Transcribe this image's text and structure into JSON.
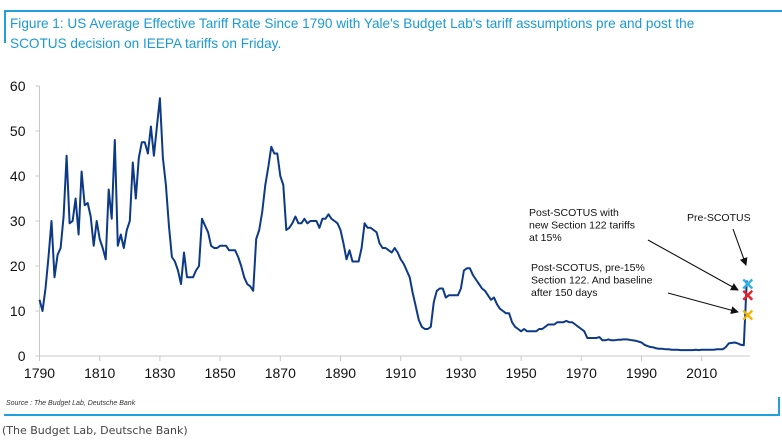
{
  "figure": {
    "title_line1": "Figure 1: US Average Effective Tariff Rate Since 1790 with Yale's Budget Lab's tariff assumptions pre and post the",
    "title_line2": "SCOTUS decision on IEEPA tariffs on Friday.",
    "source": "Source : The Budget Lab, Deutsche Bank",
    "caption": "(The Budget Lab, Deutsche Bank)"
  },
  "chart_data": {
    "type": "line",
    "title": "US Average Effective Tariff Rate Since 1790",
    "xlabel": "",
    "ylabel": "",
    "xlim": [
      1790,
      2026
    ],
    "ylim": [
      0,
      60
    ],
    "grid": false,
    "x_ticks": [
      "1790",
      "1810",
      "1830",
      "1850",
      "1870",
      "1890",
      "1910",
      "1930",
      "1950",
      "1970",
      "1990",
      "2010"
    ],
    "y_ticks": [
      "0",
      "10",
      "20",
      "30",
      "40",
      "50",
      "60"
    ],
    "series": [
      {
        "name": "US Average Effective Tariff Rate",
        "color": "#0d3a86",
        "points": [
          [
            1790,
            12.5
          ],
          [
            1791,
            10
          ],
          [
            1792,
            15
          ],
          [
            1793,
            22
          ],
          [
            1794,
            30
          ],
          [
            1795,
            17.5
          ],
          [
            1796,
            22.5
          ],
          [
            1797,
            24
          ],
          [
            1798,
            31
          ],
          [
            1799,
            44.5
          ],
          [
            1800,
            29.5
          ],
          [
            1801,
            30
          ],
          [
            1802,
            35
          ],
          [
            1803,
            27
          ],
          [
            1804,
            41
          ],
          [
            1805,
            33.5
          ],
          [
            1806,
            34
          ],
          [
            1807,
            31
          ],
          [
            1808,
            24.5
          ],
          [
            1809,
            30
          ],
          [
            1810,
            26
          ],
          [
            1811,
            24
          ],
          [
            1812,
            21.5
          ],
          [
            1813,
            37
          ],
          [
            1814,
            30.5
          ],
          [
            1815,
            48
          ],
          [
            1816,
            24.5
          ],
          [
            1817,
            27
          ],
          [
            1818,
            24
          ],
          [
            1819,
            28
          ],
          [
            1820,
            30
          ],
          [
            1821,
            43
          ],
          [
            1822,
            35
          ],
          [
            1823,
            44
          ],
          [
            1824,
            47.5
          ],
          [
            1825,
            47.5
          ],
          [
            1826,
            45
          ],
          [
            1827,
            51
          ],
          [
            1828,
            44.5
          ],
          [
            1829,
            51
          ],
          [
            1830,
            57.3
          ],
          [
            1831,
            44
          ],
          [
            1832,
            38
          ],
          [
            1833,
            29
          ],
          [
            1834,
            22
          ],
          [
            1835,
            21
          ],
          [
            1836,
            19
          ],
          [
            1837,
            16
          ],
          [
            1838,
            23
          ],
          [
            1839,
            17.5
          ],
          [
            1840,
            17.5
          ],
          [
            1841,
            17.5
          ],
          [
            1842,
            19
          ],
          [
            1843,
            20
          ],
          [
            1844,
            30.5
          ],
          [
            1845,
            29
          ],
          [
            1846,
            27.5
          ],
          [
            1847,
            24.5
          ],
          [
            1848,
            24
          ],
          [
            1849,
            24
          ],
          [
            1850,
            24.5
          ],
          [
            1851,
            24.5
          ],
          [
            1852,
            24.5
          ],
          [
            1853,
            23.5
          ],
          [
            1854,
            23.5
          ],
          [
            1855,
            23.5
          ],
          [
            1856,
            22
          ],
          [
            1857,
            20
          ],
          [
            1858,
            17.5
          ],
          [
            1859,
            16
          ],
          [
            1860,
            15.5
          ],
          [
            1861,
            14.5
          ],
          [
            1862,
            26
          ],
          [
            1863,
            28
          ],
          [
            1864,
            32
          ],
          [
            1865,
            38
          ],
          [
            1866,
            42
          ],
          [
            1867,
            46.5
          ],
          [
            1868,
            45
          ],
          [
            1869,
            45
          ],
          [
            1870,
            40
          ],
          [
            1871,
            38
          ],
          [
            1872,
            28
          ],
          [
            1873,
            28.5
          ],
          [
            1874,
            29.5
          ],
          [
            1875,
            31
          ],
          [
            1876,
            29.5
          ],
          [
            1877,
            29.5
          ],
          [
            1878,
            30.5
          ],
          [
            1879,
            29.5
          ],
          [
            1880,
            30
          ],
          [
            1881,
            30
          ],
          [
            1882,
            30
          ],
          [
            1883,
            28.5
          ],
          [
            1884,
            30.5
          ],
          [
            1885,
            30.5
          ],
          [
            1886,
            31.5
          ],
          [
            1887,
            30.5
          ],
          [
            1888,
            30
          ],
          [
            1889,
            29.5
          ],
          [
            1890,
            28
          ],
          [
            1891,
            25
          ],
          [
            1892,
            21.5
          ],
          [
            1893,
            23.5
          ],
          [
            1894,
            21
          ],
          [
            1895,
            21
          ],
          [
            1896,
            21
          ],
          [
            1897,
            24
          ],
          [
            1898,
            29.5
          ],
          [
            1899,
            28.5
          ],
          [
            1900,
            28.5
          ],
          [
            1901,
            28
          ],
          [
            1902,
            27.5
          ],
          [
            1903,
            25
          ],
          [
            1904,
            24
          ],
          [
            1905,
            24
          ],
          [
            1906,
            23.5
          ],
          [
            1907,
            23
          ],
          [
            1908,
            24
          ],
          [
            1909,
            23
          ],
          [
            1910,
            21.5
          ],
          [
            1911,
            20.5
          ],
          [
            1912,
            19
          ],
          [
            1913,
            17.5
          ],
          [
            1914,
            14
          ],
          [
            1915,
            11
          ],
          [
            1916,
            8
          ],
          [
            1917,
            6.5
          ],
          [
            1918,
            6
          ],
          [
            1919,
            6
          ],
          [
            1920,
            6.5
          ],
          [
            1921,
            12
          ],
          [
            1922,
            14.5
          ],
          [
            1923,
            15
          ],
          [
            1924,
            15
          ],
          [
            1925,
            13
          ],
          [
            1926,
            13.5
          ],
          [
            1927,
            13.5
          ],
          [
            1928,
            13.5
          ],
          [
            1929,
            13.5
          ],
          [
            1930,
            15
          ],
          [
            1931,
            19
          ],
          [
            1932,
            19.5
          ],
          [
            1933,
            19.5
          ],
          [
            1934,
            18
          ],
          [
            1935,
            17
          ],
          [
            1936,
            16
          ],
          [
            1937,
            15
          ],
          [
            1938,
            14.5
          ],
          [
            1939,
            13.5
          ],
          [
            1940,
            12.5
          ],
          [
            1941,
            13
          ],
          [
            1942,
            11.5
          ],
          [
            1943,
            10.5
          ],
          [
            1944,
            10
          ],
          [
            1945,
            9.5
          ],
          [
            1946,
            9.5
          ],
          [
            1947,
            7.5
          ],
          [
            1948,
            6.5
          ],
          [
            1949,
            6
          ],
          [
            1950,
            5.5
          ],
          [
            1951,
            6
          ],
          [
            1952,
            5.5
          ],
          [
            1953,
            5.5
          ],
          [
            1954,
            5.5
          ],
          [
            1955,
            5.5
          ],
          [
            1956,
            6
          ],
          [
            1957,
            6
          ],
          [
            1958,
            6.5
          ],
          [
            1959,
            7
          ],
          [
            1960,
            7
          ],
          [
            1961,
            7
          ],
          [
            1962,
            7.5
          ],
          [
            1963,
            7.5
          ],
          [
            1964,
            7.5
          ],
          [
            1965,
            7.8
          ],
          [
            1966,
            7.5
          ],
          [
            1967,
            7.5
          ],
          [
            1968,
            7
          ],
          [
            1969,
            6.5
          ],
          [
            1970,
            6
          ],
          [
            1971,
            5.5
          ],
          [
            1972,
            4
          ],
          [
            1973,
            4
          ],
          [
            1974,
            4
          ],
          [
            1975,
            4
          ],
          [
            1976,
            4.2
          ],
          [
            1977,
            3.5
          ],
          [
            1978,
            3.5
          ],
          [
            1979,
            3.7
          ],
          [
            1980,
            3.5
          ],
          [
            1981,
            3.5
          ],
          [
            1982,
            3.6
          ],
          [
            1983,
            3.6
          ],
          [
            1984,
            3.7
          ],
          [
            1985,
            3.7
          ],
          [
            1986,
            3.6
          ],
          [
            1987,
            3.5
          ],
          [
            1988,
            3.4
          ],
          [
            1989,
            3.2
          ],
          [
            1990,
            3
          ],
          [
            1991,
            2.5
          ],
          [
            1992,
            2.2
          ],
          [
            1993,
            2
          ],
          [
            1994,
            1.9
          ],
          [
            1995,
            1.7
          ],
          [
            1996,
            1.6
          ],
          [
            1997,
            1.6
          ],
          [
            1998,
            1.5
          ],
          [
            1999,
            1.5
          ],
          [
            2000,
            1.4
          ],
          [
            2001,
            1.4
          ],
          [
            2002,
            1.4
          ],
          [
            2003,
            1.3
          ],
          [
            2004,
            1.3
          ],
          [
            2005,
            1.3
          ],
          [
            2006,
            1.3
          ],
          [
            2007,
            1.3
          ],
          [
            2008,
            1.4
          ],
          [
            2009,
            1.3
          ],
          [
            2010,
            1.4
          ],
          [
            2011,
            1.4
          ],
          [
            2012,
            1.4
          ],
          [
            2013,
            1.4
          ],
          [
            2014,
            1.4
          ],
          [
            2015,
            1.5
          ],
          [
            2016,
            1.5
          ],
          [
            2017,
            1.5
          ],
          [
            2018,
            2
          ],
          [
            2019,
            2.8
          ],
          [
            2020,
            2.9
          ],
          [
            2021,
            3
          ],
          [
            2022,
            2.8
          ],
          [
            2023,
            2.5
          ],
          [
            2024,
            2.4
          ],
          [
            2025,
            16.8
          ]
        ]
      }
    ],
    "markers": [
      {
        "name": "Pre-SCOTUS",
        "x": 2025.3,
        "y": 16.0,
        "color": "#2fb0e8",
        "symbol": "x"
      },
      {
        "name": "Post-SCOTUS with new Section 122 tariffs at 15%",
        "x": 2025.3,
        "y": 13.5,
        "color": "#e8202a",
        "symbol": "x"
      },
      {
        "name": "Post-SCOTUS, pre-15% Section 122. And baseline after 150 days",
        "x": 2025.3,
        "y": 9.1,
        "color": "#f5b400",
        "symbol": "x"
      }
    ],
    "annotations": [
      {
        "lines": [
          "Pre-SCOTUS"
        ],
        "target": "Pre-SCOTUS"
      },
      {
        "lines": [
          "Post-SCOTUS with",
          "new Section 122 tariffs",
          "at 15%"
        ],
        "target": "Post-SCOTUS with new Section 122 tariffs at 15%"
      },
      {
        "lines": [
          "Post-SCOTUS, pre-15%",
          "Section 122. And baseline",
          "after 150 days"
        ],
        "target": "Post-SCOTUS, pre-15% Section 122. And baseline after 150 days"
      }
    ]
  }
}
